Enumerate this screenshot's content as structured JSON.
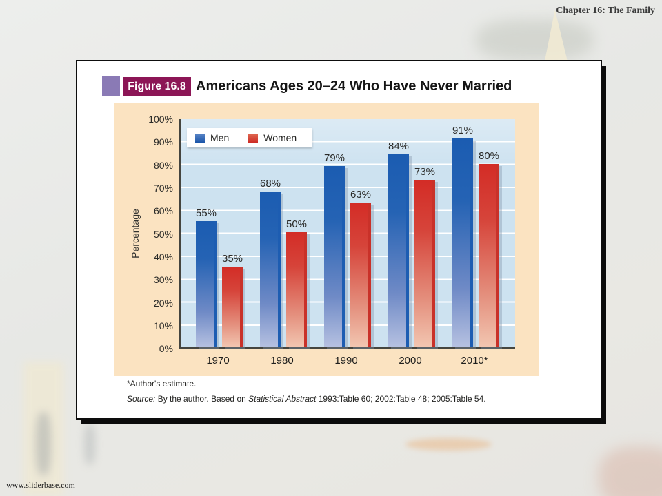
{
  "page": {
    "chapter_header": "Chapter 16: The Family",
    "watermark": "www.sliderbase.com"
  },
  "figure": {
    "badge": "Figure 16.8",
    "title": "Americans Ages 20–24 Who Have Never Married",
    "footnote": "*Author's estimate.",
    "source_prefix": "Source:",
    "source_mid": " By the author. Based on ",
    "source_italic": "Statistical Abstract",
    "source_suffix": " 1993:Table 60; 2002:Table 48; 2005:Table 54."
  },
  "chart_data": {
    "type": "bar",
    "title": "Americans Ages 20–24 Who Have Never Married",
    "categories": [
      "1970",
      "1980",
      "1990",
      "2000",
      "2010*"
    ],
    "series": [
      {
        "name": "Men",
        "color": "#1b5cb1",
        "values": [
          55,
          68,
          79,
          84,
          91
        ]
      },
      {
        "name": "Women",
        "color": "#d32c26",
        "values": [
          35,
          50,
          63,
          73,
          80
        ]
      }
    ],
    "xlabel": "",
    "ylabel": "Percentage",
    "ylim": [
      0,
      100
    ],
    "y_ticks": [
      "100%",
      "90%",
      "80%",
      "70%",
      "60%",
      "50%",
      "40%",
      "30%",
      "20%",
      "10%",
      "0%"
    ],
    "value_label_suffix": "%",
    "grid": true,
    "legend_position": "top-left"
  },
  "colors": {
    "badge_bg": "#8c1656",
    "accent_purple": "#8a7ab5",
    "panel_peach": "#fbe3c1",
    "plot_band_blue": "#cde2f0",
    "men_blue": "#1b5cb1",
    "women_red": "#d32c26"
  }
}
